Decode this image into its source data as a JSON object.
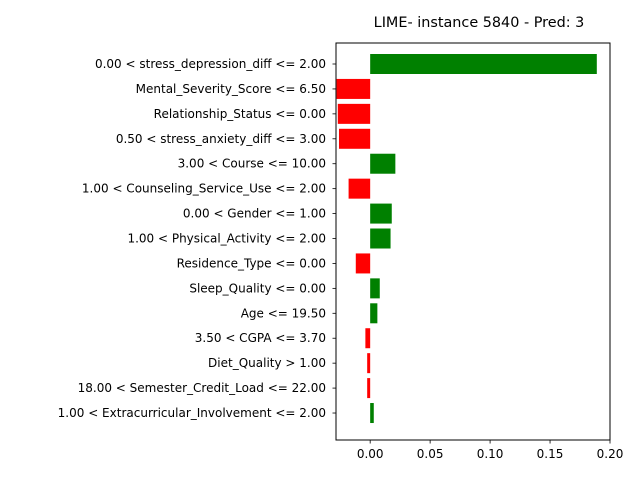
{
  "chart_data": {
    "type": "bar",
    "orientation": "horizontal",
    "title": "LIME- instance 5840 - Pred: 3",
    "xlabel": "",
    "ylabel": "",
    "xlim": [
      -0.0285,
      0.2
    ],
    "xticks": [
      0.0,
      0.05,
      0.1,
      0.15,
      0.2
    ],
    "xtick_labels": [
      "0.00",
      "0.05",
      "0.10",
      "0.15",
      "0.20"
    ],
    "grid": false,
    "legend": "none",
    "positive_color": "#008000",
    "negative_color": "#ff0000",
    "categories": [
      "0.00 < stress_depression_diff <= 2.00",
      "Mental_Severity_Score <= 6.50",
      "Relationship_Status <= 0.00",
      "0.50 < stress_anxiety_diff <= 3.00",
      "3.00 < Course <= 10.00",
      "1.00 < Counseling_Service_Use <= 2.00",
      "0.00 < Gender <= 1.00",
      "1.00 < Physical_Activity <= 2.00",
      "Residence_Type <= 0.00",
      "Sleep_Quality <= 0.00",
      "Age <= 19.50",
      "3.50 < CGPA <= 3.70",
      "Diet_Quality > 1.00",
      "18.00 < Semester_Credit_Load <= 22.00",
      "1.00 < Extracurricular_Involvement <= 2.00"
    ],
    "values": [
      0.189,
      -0.028,
      -0.027,
      -0.026,
      0.021,
      -0.018,
      0.018,
      0.017,
      -0.012,
      0.008,
      0.006,
      -0.004,
      -0.0025,
      -0.0025,
      0.003
    ]
  }
}
